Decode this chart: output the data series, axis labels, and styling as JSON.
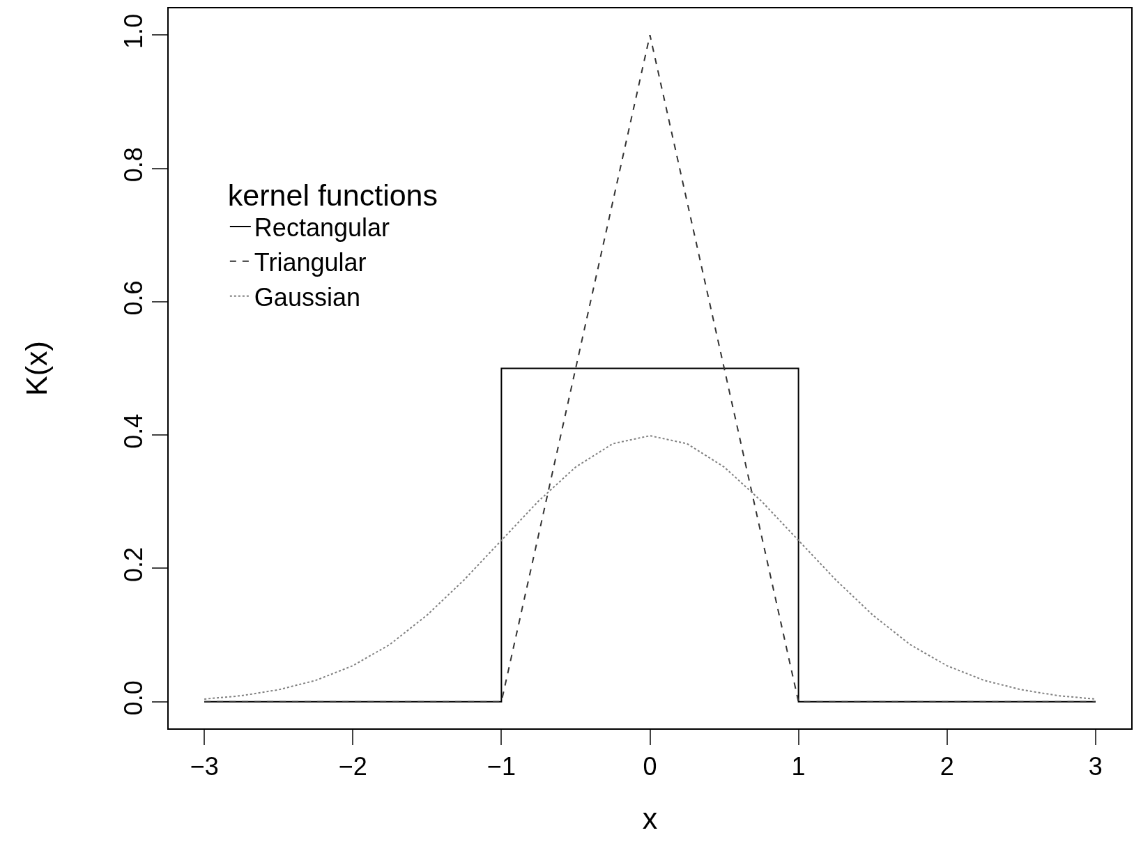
{
  "chart_data": {
    "type": "line",
    "xlabel": "x",
    "ylabel": "K(x)",
    "legend_title": "kernel functions",
    "legend": "top left",
    "xlim": [
      -3.24,
      3.24
    ],
    "ylim": [
      -0.04,
      1.04
    ],
    "xticks": [
      {
        "value": -3,
        "label": "−3"
      },
      {
        "value": -2,
        "label": "−2"
      },
      {
        "value": -1,
        "label": "−1"
      },
      0,
      1,
      2,
      3
    ],
    "yticks": [
      {
        "value": 0,
        "label": "0.0"
      },
      {
        "value": 0.2,
        "label": "0.2"
      },
      {
        "value": 0.4,
        "label": "0.4"
      },
      {
        "value": 0.6,
        "label": "0.6"
      },
      {
        "value": 0.8,
        "label": "0.8"
      },
      {
        "value": 1,
        "label": "1.0"
      }
    ],
    "series": [
      {
        "name": "Rectangular",
        "color": "#000000",
        "line_style": "solid",
        "x": [
          -3,
          -1,
          -1,
          1,
          1,
          3
        ],
        "values": [
          0,
          0,
          0.5,
          0.5,
          0,
          0
        ]
      },
      {
        "name": "Triangular",
        "color": "#333333",
        "line_style": "dashed",
        "x": [
          -3,
          -1,
          0,
          1,
          3
        ],
        "values": [
          0,
          0,
          1,
          0,
          0
        ]
      },
      {
        "name": "Gaussian",
        "color": "#808080",
        "line_style": "dotted",
        "x": [
          -3,
          -2.75,
          -2.5,
          -2.25,
          -2,
          -1.75,
          -1.5,
          -1.25,
          -1,
          -0.75,
          -0.5,
          -0.25,
          0,
          0.25,
          0.5,
          0.75,
          1,
          1.25,
          1.5,
          1.75,
          2,
          2.25,
          2.5,
          2.75,
          3
        ],
        "values": [
          0.004,
          0.009,
          0.018,
          0.032,
          0.054,
          0.086,
          0.13,
          0.183,
          0.242,
          0.301,
          0.352,
          0.387,
          0.399,
          0.387,
          0.352,
          0.301,
          0.242,
          0.183,
          0.13,
          0.086,
          0.054,
          0.032,
          0.018,
          0.009,
          0.004
        ]
      }
    ]
  }
}
